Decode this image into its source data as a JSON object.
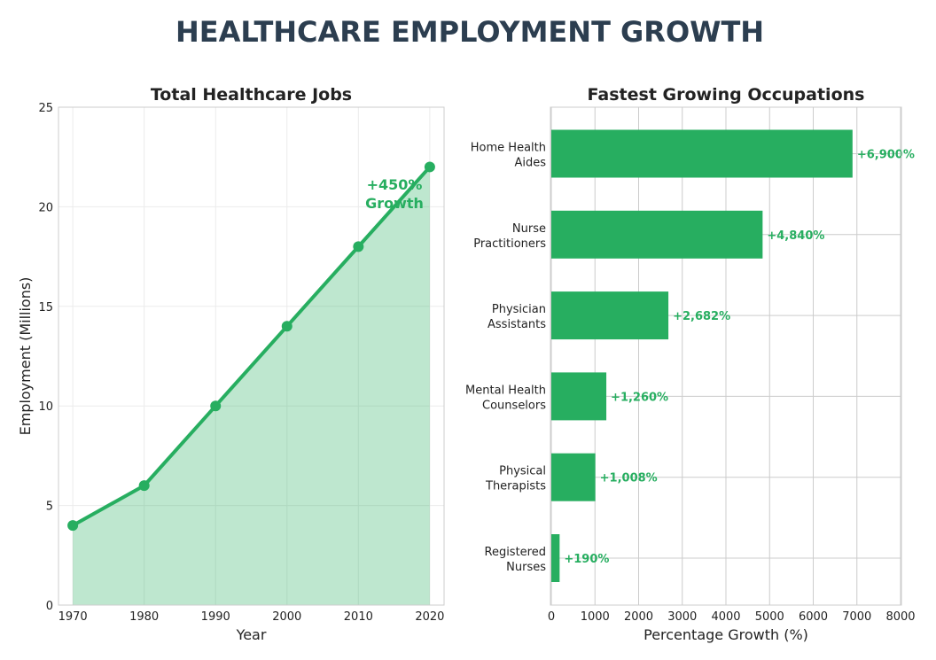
{
  "title": "HEALTHCARE EMPLOYMENT GROWTH",
  "colors": {
    "accent": "#27ae60",
    "title": "#2c3e50",
    "text": "#222222",
    "grid": "#cccccc"
  },
  "chart_data": [
    {
      "type": "area",
      "title": "Total Healthcare Jobs",
      "xlabel": "Year",
      "ylabel": "Employment (Millions)",
      "x": [
        1970,
        1980,
        1990,
        2000,
        2010,
        2020
      ],
      "y": [
        4,
        6,
        10,
        14,
        18,
        22
      ],
      "xlim": [
        1968,
        2022
      ],
      "ylim": [
        0,
        25
      ],
      "xticks": [
        1970,
        1980,
        1990,
        2000,
        2010,
        2020
      ],
      "yticks": [
        0,
        5,
        10,
        15,
        20,
        25
      ],
      "grid": true,
      "annotation": [
        "+450%",
        "Growth"
      ]
    },
    {
      "type": "bar",
      "orientation": "horizontal",
      "title": "Fastest Growing Occupations",
      "xlabel": "Percentage Growth (%)",
      "categories": [
        [
          "Registered",
          "Nurses"
        ],
        [
          "Physical",
          "Therapists"
        ],
        [
          "Mental Health",
          "Counselors"
        ],
        [
          "Physician",
          "Assistants"
        ],
        [
          "Nurse",
          "Practitioners"
        ],
        [
          "Home Health",
          "Aides"
        ]
      ],
      "values": [
        190,
        1008,
        1260,
        2682,
        4840,
        6900
      ],
      "data_labels": [
        "+190%",
        "+1,008%",
        "+1,260%",
        "+2,682%",
        "+4,840%",
        "+6,900%"
      ],
      "xlim": [
        0,
        8000
      ],
      "xticks": [
        0,
        1000,
        2000,
        3000,
        4000,
        5000,
        6000,
        7000,
        8000
      ],
      "grid": true
    }
  ]
}
